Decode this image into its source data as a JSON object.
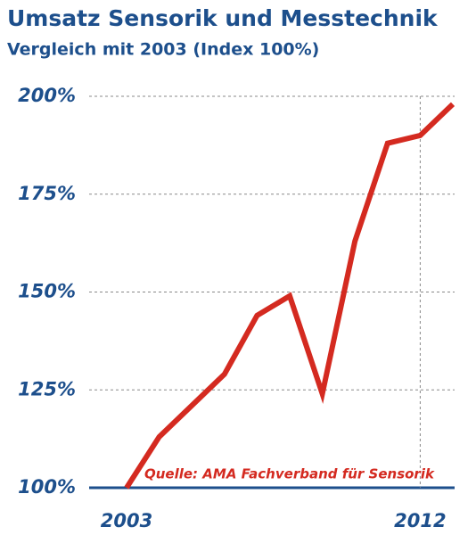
{
  "chart_data": {
    "type": "line",
    "title": "Umsatz Sensorik und Messtechnik",
    "subtitle": "Vergleich mit 2003 (Index 100%)",
    "annotation": "Quelle: AMA Fachverband für Sensorik",
    "categories": [
      "2003",
      null,
      null,
      null,
      null,
      null,
      null,
      null,
      null,
      "2012",
      null
    ],
    "series": [
      {
        "name": "Umsatz",
        "color": "#d42a20",
        "values": [
          100,
          113,
          121,
          129,
          144,
          149,
          124,
          163,
          188,
          190,
          198
        ]
      }
    ],
    "ylim": [
      100,
      200
    ],
    "yticks": [
      {
        "value": 100,
        "label": "100%"
      },
      {
        "value": 125,
        "label": "125%"
      },
      {
        "value": 150,
        "label": "150%"
      },
      {
        "value": 175,
        "label": "175%"
      },
      {
        "value": 200,
        "label": "200%"
      }
    ],
    "grid": true
  }
}
